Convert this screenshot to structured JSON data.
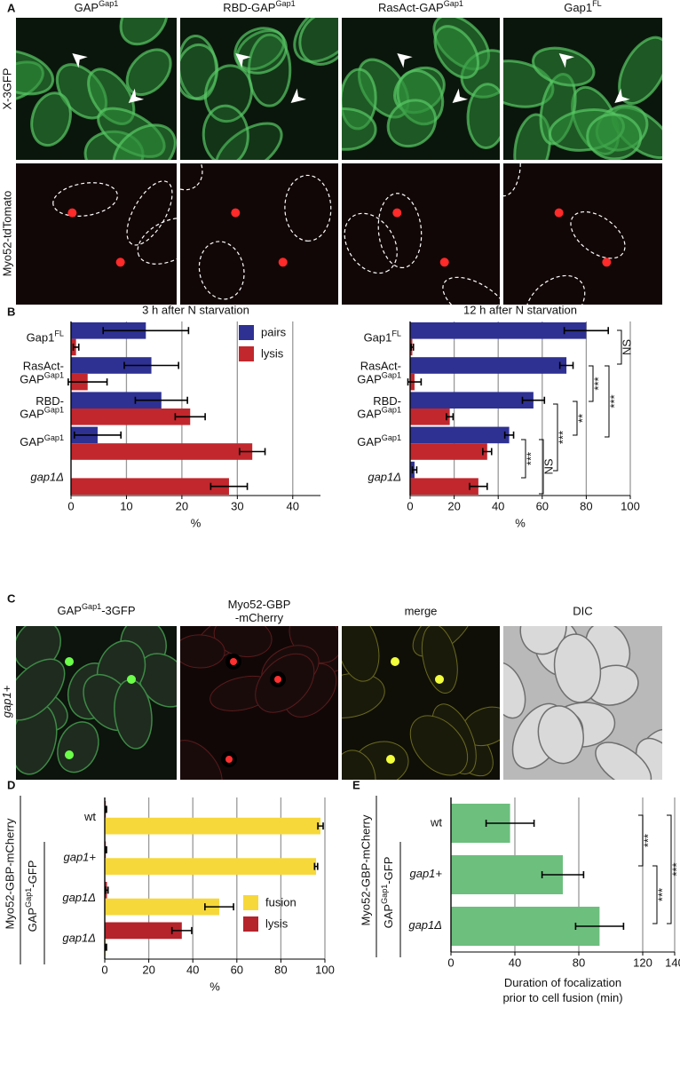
{
  "panel_labels": [
    "A",
    "B",
    "C",
    "D",
    "E"
  ],
  "panel_a": {
    "columns": [
      {
        "text": "GAP",
        "sup": "Gap1"
      },
      {
        "text": "RBD-GAP",
        "sup": "Gap1"
      },
      {
        "text": "RasAct-GAP",
        "sup": "Gap1"
      },
      {
        "text": "Gap1",
        "sup": "FL"
      }
    ],
    "rows": [
      "X-3GFP",
      "Myo52-tdTomato"
    ]
  },
  "panel_c": {
    "columns": [
      {
        "text": "GAP",
        "sup": "Gap1",
        "tail": "-3GFP"
      },
      [
        "Myo52-GBP",
        "-mCherry"
      ],
      "merge",
      "DIC"
    ],
    "row": {
      "text": "gap1+",
      "italic": true
    }
  },
  "chart_data": [
    {
      "type": "bar",
      "orientation": "horizontal",
      "title": "3 h after N starvation",
      "categories": [
        {
          "text": "Gap1",
          "sup": "FL"
        },
        [
          "RasAct-",
          {
            "text": "GAP",
            "sup": "Gap1"
          }
        ],
        [
          "RBD-",
          {
            "text": "GAP",
            "sup": "Gap1"
          }
        ],
        {
          "text": "GAP",
          "sup": "Gap1"
        },
        {
          "text": "gap1Δ",
          "italic": true
        }
      ],
      "series": [
        {
          "name": "pairs",
          "color": "#2e3192",
          "values": [
            13.5,
            14.5,
            16.3,
            4.8,
            0
          ],
          "errors": [
            7.7,
            4.9,
            4.7,
            4.2,
            null
          ]
        },
        {
          "name": "lysis",
          "color": "#c1272d",
          "values": [
            0.9,
            3,
            21.5,
            32.7,
            28.5
          ],
          "errors": [
            0.5,
            3.5,
            2.7,
            2.3,
            3.3
          ]
        }
      ],
      "xlim": [
        0,
        45
      ],
      "xticks": [
        0,
        10,
        20,
        30,
        40
      ],
      "xlabel": "%",
      "grid": true,
      "legend": "upper right"
    },
    {
      "type": "bar",
      "orientation": "horizontal",
      "title": "12 h after N starvation",
      "categories": [
        {
          "text": "Gap1",
          "sup": "FL"
        },
        [
          "RasAct-",
          {
            "text": "GAP",
            "sup": "Gap1"
          }
        ],
        [
          "RBD-",
          {
            "text": "GAP",
            "sup": "Gap1"
          }
        ],
        {
          "text": "GAP",
          "sup": "Gap1"
        },
        {
          "text": "gap1Δ",
          "italic": true
        }
      ],
      "series": [
        {
          "name": "pairs",
          "color": "#2e3192",
          "values": [
            80,
            71,
            56,
            45,
            2
          ],
          "errors": [
            10,
            3,
            5,
            2,
            1
          ]
        },
        {
          "name": "lysis",
          "color": "#c1272d",
          "values": [
            1,
            2,
            18,
            35,
            31
          ],
          "errors": [
            0.5,
            3,
            1.5,
            2,
            4
          ]
        }
      ],
      "xlim": [
        0,
        100
      ],
      "xticks": [
        0,
        20,
        40,
        60,
        80,
        100
      ],
      "xlabel": "%",
      "grid": true,
      "annotations": [
        "NS",
        "***",
        "***",
        "**",
        "***",
        "***",
        "NS"
      ]
    },
    {
      "type": "bar",
      "orientation": "horizontal",
      "group_labels": [
        "Myo52-GBP-mCherry",
        {
          "text": "GAP",
          "sup": "Gap1",
          "tail": "-GFP"
        }
      ],
      "categories": [
        "wt",
        {
          "text": "gap1+",
          "italic": true
        },
        {
          "text": "gap1Δ",
          "italic": true
        },
        {
          "text": "gap1Δ",
          "italic": true
        }
      ],
      "series": [
        {
          "name": "lysis",
          "color": "#b5232b",
          "values": [
            0.5,
            0.5,
            1,
            35
          ],
          "errors": [
            0.3,
            0.3,
            0.5,
            4.5
          ]
        },
        {
          "name": "fusion",
          "color": "#f7d83a",
          "values": [
            98,
            96,
            52,
            0.5
          ],
          "errors": [
            1.2,
            0.7,
            6.5,
            0.3
          ]
        }
      ],
      "xlim": [
        0,
        100
      ],
      "xticks": [
        0,
        20,
        40,
        60,
        80,
        100
      ],
      "xlabel": "%",
      "grid": true,
      "legend": "lower right",
      "legend_order": "reverse"
    },
    {
      "type": "bar",
      "orientation": "horizontal",
      "group_labels": [
        "Myo52-GBP-mCherry",
        {
          "text": "GAP",
          "sup": "Gap1",
          "tail": "-GFP"
        }
      ],
      "categories": [
        "wt",
        {
          "text": "gap1+",
          "italic": true
        },
        {
          "text": "gap1Δ",
          "italic": true
        }
      ],
      "series": [
        {
          "color": "#6dbf7e",
          "values": [
            37,
            70,
            93
          ],
          "errors": [
            15,
            13,
            15
          ]
        }
      ],
      "xlim": [
        0,
        140
      ],
      "xticks": [
        0,
        40,
        80,
        120,
        140
      ],
      "xlabel": [
        "Duration of focalization",
        "prior to cell fusion (min)"
      ],
      "grid": true,
      "annotations": [
        "***",
        "***",
        "***"
      ]
    }
  ]
}
